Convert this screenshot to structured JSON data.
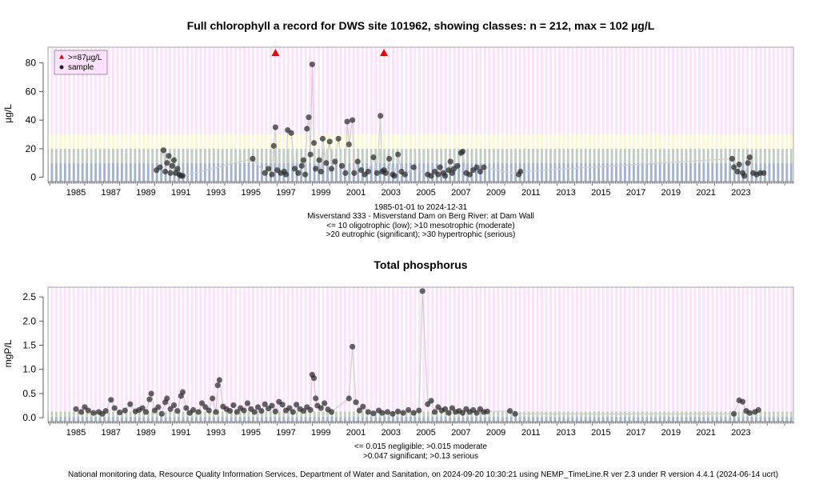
{
  "footer": "National monitoring data, Resource Quality Information Services, Department of Water and Sanitation, on 2024-09-20 10:30:21 using NEMP_TimeLine.R ver 2.3 under R version 4.4.1 (2024-06-14 ucrt)",
  "chart_data": [
    {
      "type": "scatter",
      "title": "Full chlorophyll a record for DWS site 101962, showing classes: n = 212, max = 102 µg/L",
      "ylabel": "µg/L",
      "xlim": [
        1983.9,
        2026.5
      ],
      "ylim": [
        -3,
        91
      ],
      "x_ticks": [
        1985,
        1987,
        1989,
        1991,
        1993,
        1995,
        1997,
        1999,
        2001,
        2003,
        2005,
        2007,
        2009,
        2011,
        2013,
        2015,
        2017,
        2019,
        2021,
        2023
      ],
      "y_ticks": [
        0,
        20,
        40,
        60,
        80
      ],
      "grid": true,
      "legend_position": "top-left",
      "legend": [
        {
          "label": ">=87µg/L",
          "marker": "triangle",
          "color": "#ee0000"
        },
        {
          "label": "sample",
          "marker": "circle",
          "color": "#222222"
        }
      ],
      "bands": [
        {
          "from": -3,
          "to": 10,
          "color": "#a3b2cc"
        },
        {
          "from": 10,
          "to": 20,
          "color": "#c2cdc2"
        },
        {
          "from": 20,
          "to": 30,
          "color": "#fbf7cf"
        },
        {
          "from": 30,
          "to": 91,
          "color": "#fde1fd"
        }
      ],
      "annotation_lines": [
        "1985-01-01 to 2024-12-31",
        "Misverstand 333 - Misverstand Dam on Berg River: at Dam Wall",
        "<= 10 oligotrophic (low); >10 mesotrophic (moderate)",
        ">20 eutrophic (significant); >30 hypertrophic (serious)"
      ],
      "exceedances": [
        [
          1996.9,
          87
        ],
        [
          2003.1,
          87
        ]
      ],
      "series": [
        {
          "points": [
            [
              1990.1,
              5
            ],
            [
              1990.3,
              7
            ],
            [
              1990.5,
              19
            ],
            [
              1990.6,
              4
            ],
            [
              1990.7,
              10
            ],
            [
              1990.8,
              15
            ],
            [
              1990.9,
              3
            ],
            [
              1991.0,
              8
            ],
            [
              1991.1,
              12
            ],
            [
              1991.2,
              3
            ],
            [
              1991.3,
              6
            ],
            [
              1991.4,
              2
            ],
            [
              1991.5,
              1
            ],
            [
              1991.6,
              1
            ],
            [
              1995.6,
              13
            ],
            [
              1996.3,
              3
            ],
            [
              1996.5,
              6
            ],
            [
              1996.7,
              2
            ],
            [
              1996.8,
              22
            ],
            [
              1996.9,
              35
            ],
            [
              1997.0,
              5
            ],
            [
              1997.2,
              3
            ],
            [
              1997.4,
              4
            ],
            [
              1997.5,
              2
            ],
            [
              1997.6,
              33
            ],
            [
              1997.8,
              31
            ],
            [
              1998.0,
              6
            ],
            [
              1998.2,
              3
            ],
            [
              1998.4,
              8
            ],
            [
              1998.5,
              12
            ],
            [
              1998.6,
              2
            ],
            [
              1998.7,
              34
            ],
            [
              1998.8,
              42
            ],
            [
              1998.9,
              16
            ],
            [
              1999.0,
              79
            ],
            [
              1999.1,
              24
            ],
            [
              1999.2,
              6
            ],
            [
              1999.4,
              12
            ],
            [
              1999.5,
              4
            ],
            [
              1999.6,
              27
            ],
            [
              1999.8,
              10
            ],
            [
              2000.0,
              25
            ],
            [
              2000.1,
              6
            ],
            [
              2000.3,
              11
            ],
            [
              2000.5,
              27
            ],
            [
              2000.7,
              8
            ],
            [
              2000.9,
              3
            ],
            [
              2001.0,
              39
            ],
            [
              2001.1,
              23
            ],
            [
              2001.3,
              40
            ],
            [
              2001.4,
              3
            ],
            [
              2001.6,
              11
            ],
            [
              2001.8,
              5
            ],
            [
              2002.0,
              2
            ],
            [
              2002.2,
              4
            ],
            [
              2002.5,
              14
            ],
            [
              2002.7,
              3
            ],
            [
              2002.9,
              43
            ],
            [
              2003.0,
              4
            ],
            [
              2003.1,
              5
            ],
            [
              2003.2,
              3
            ],
            [
              2003.4,
              13
            ],
            [
              2003.6,
              2
            ],
            [
              2003.7,
              1
            ],
            [
              2003.9,
              16
            ],
            [
              2004.1,
              4
            ],
            [
              2004.3,
              2
            ],
            [
              2004.8,
              7
            ],
            [
              2005.6,
              2
            ],
            [
              2005.8,
              1
            ],
            [
              2006.0,
              4
            ],
            [
              2006.2,
              2
            ],
            [
              2006.3,
              7
            ],
            [
              2006.5,
              3
            ],
            [
              2006.6,
              1
            ],
            [
              2006.8,
              5
            ],
            [
              2006.9,
              11
            ],
            [
              2007.0,
              3
            ],
            [
              2007.1,
              6
            ],
            [
              2007.3,
              8
            ],
            [
              2007.5,
              17
            ],
            [
              2007.6,
              18
            ],
            [
              2007.8,
              3
            ],
            [
              2008.0,
              2
            ],
            [
              2008.2,
              5
            ],
            [
              2008.4,
              7
            ],
            [
              2008.6,
              4
            ],
            [
              2008.8,
              7
            ],
            [
              2010.8,
              2
            ],
            [
              2010.9,
              4
            ],
            [
              2023.0,
              13
            ],
            [
              2023.1,
              7
            ],
            [
              2023.3,
              4
            ],
            [
              2023.4,
              9
            ],
            [
              2023.6,
              3
            ],
            [
              2023.7,
              1
            ],
            [
              2023.9,
              10
            ],
            [
              2024.0,
              14
            ],
            [
              2024.2,
              3
            ],
            [
              2024.4,
              2
            ],
            [
              2024.6,
              3
            ],
            [
              2024.8,
              3
            ]
          ]
        }
      ]
    },
    {
      "type": "scatter",
      "title": "Total phosphorus",
      "ylabel": "mgP/L",
      "xlim": [
        1983.9,
        2026.5
      ],
      "ylim": [
        -0.08,
        2.7
      ],
      "x_ticks": [
        1985,
        1987,
        1989,
        1991,
        1993,
        1995,
        1997,
        1999,
        2001,
        2003,
        2005,
        2007,
        2009,
        2011,
        2013,
        2015,
        2017,
        2019,
        2021,
        2023
      ],
      "y_ticks": [
        0.0,
        0.5,
        1.0,
        1.5,
        2.0,
        2.5
      ],
      "grid": true,
      "bands": [
        {
          "from": -0.08,
          "to": 0.015,
          "color": "#a3b2cc"
        },
        {
          "from": 0.015,
          "to": 0.047,
          "color": "#c2cdc2"
        },
        {
          "from": 0.047,
          "to": 0.13,
          "color": "#c2cdc2"
        },
        {
          "from": 0.13,
          "to": 2.7,
          "color": "#fde1fd"
        }
      ],
      "annotation_lines": [
        "<= 0.015 negligible; >0.015 moderate",
        ">0.047 significant; >0.13 serious"
      ],
      "series": [
        {
          "points": [
            [
              1985.5,
              0.18
            ],
            [
              1985.8,
              0.12
            ],
            [
              1986.0,
              0.22
            ],
            [
              1986.2,
              0.15
            ],
            [
              1986.5,
              0.1
            ],
            [
              1986.8,
              0.12
            ],
            [
              1987.0,
              0.08
            ],
            [
              1987.2,
              0.14
            ],
            [
              1987.5,
              0.37
            ],
            [
              1987.7,
              0.2
            ],
            [
              1988.0,
              0.11
            ],
            [
              1988.3,
              0.15
            ],
            [
              1988.6,
              0.28
            ],
            [
              1988.9,
              0.13
            ],
            [
              1989.1,
              0.16
            ],
            [
              1989.3,
              0.2
            ],
            [
              1989.5,
              0.12
            ],
            [
              1989.7,
              0.38
            ],
            [
              1989.8,
              0.5
            ],
            [
              1990.0,
              0.15
            ],
            [
              1990.2,
              0.22
            ],
            [
              1990.4,
              0.08
            ],
            [
              1990.6,
              0.32
            ],
            [
              1990.7,
              0.4
            ],
            [
              1990.9,
              0.18
            ],
            [
              1991.1,
              0.26
            ],
            [
              1991.3,
              0.14
            ],
            [
              1991.5,
              0.45
            ],
            [
              1991.6,
              0.53
            ],
            [
              1991.8,
              0.2
            ],
            [
              1992.0,
              0.1
            ],
            [
              1992.2,
              0.16
            ],
            [
              1992.5,
              0.12
            ],
            [
              1992.7,
              0.3
            ],
            [
              1992.9,
              0.22
            ],
            [
              1993.1,
              0.15
            ],
            [
              1993.3,
              0.4
            ],
            [
              1993.5,
              0.12
            ],
            [
              1993.6,
              0.67
            ],
            [
              1993.7,
              0.78
            ],
            [
              1993.9,
              0.23
            ],
            [
              1994.1,
              0.18
            ],
            [
              1994.3,
              0.14
            ],
            [
              1994.5,
              0.26
            ],
            [
              1994.7,
              0.12
            ],
            [
              1994.9,
              0.2
            ],
            [
              1995.1,
              0.15
            ],
            [
              1995.3,
              0.3
            ],
            [
              1995.5,
              0.18
            ],
            [
              1995.7,
              0.12
            ],
            [
              1995.9,
              0.22
            ],
            [
              1996.1,
              0.14
            ],
            [
              1996.3,
              0.28
            ],
            [
              1996.5,
              0.19
            ],
            [
              1996.7,
              0.25
            ],
            [
              1996.9,
              0.13
            ],
            [
              1997.1,
              0.33
            ],
            [
              1997.3,
              0.27
            ],
            [
              1997.5,
              0.15
            ],
            [
              1997.7,
              0.2
            ],
            [
              1997.9,
              0.12
            ],
            [
              1998.1,
              0.27
            ],
            [
              1998.3,
              0.18
            ],
            [
              1998.5,
              0.14
            ],
            [
              1998.7,
              0.22
            ],
            [
              1998.9,
              0.16
            ],
            [
              1999.0,
              0.89
            ],
            [
              1999.1,
              0.82
            ],
            [
              1999.2,
              0.4
            ],
            [
              1999.3,
              0.25
            ],
            [
              1999.5,
              0.2
            ],
            [
              1999.7,
              0.3
            ],
            [
              1999.9,
              0.17
            ],
            [
              2000.1,
              0.12
            ],
            [
              2001.1,
              0.4
            ],
            [
              2001.3,
              1.47
            ],
            [
              2001.5,
              0.32
            ],
            [
              2001.7,
              0.15
            ],
            [
              2001.9,
              0.23
            ],
            [
              2002.2,
              0.12
            ],
            [
              2002.5,
              0.09
            ],
            [
              2002.8,
              0.15
            ],
            [
              2003.0,
              0.1
            ],
            [
              2003.3,
              0.12
            ],
            [
              2003.6,
              0.08
            ],
            [
              2003.9,
              0.13
            ],
            [
              2004.2,
              0.1
            ],
            [
              2004.5,
              0.16
            ],
            [
              2004.8,
              0.1
            ],
            [
              2005.1,
              0.15
            ],
            [
              2005.3,
              2.62
            ],
            [
              2005.6,
              0.28
            ],
            [
              2005.8,
              0.35
            ],
            [
              2006.0,
              0.12
            ],
            [
              2006.2,
              0.22
            ],
            [
              2006.4,
              0.15
            ],
            [
              2006.6,
              0.18
            ],
            [
              2006.8,
              0.1
            ],
            [
              2007.0,
              0.2
            ],
            [
              2007.2,
              0.12
            ],
            [
              2007.4,
              0.14
            ],
            [
              2007.6,
              0.1
            ],
            [
              2007.8,
              0.18
            ],
            [
              2008.0,
              0.12
            ],
            [
              2008.2,
              0.16
            ],
            [
              2008.4,
              0.1
            ],
            [
              2008.6,
              0.18
            ],
            [
              2008.8,
              0.12
            ],
            [
              2009.0,
              0.13
            ],
            [
              2010.3,
              0.14
            ],
            [
              2010.6,
              0.08
            ],
            [
              2023.1,
              0.08
            ],
            [
              2023.4,
              0.36
            ],
            [
              2023.6,
              0.33
            ],
            [
              2023.8,
              0.14
            ],
            [
              2024.0,
              0.1
            ],
            [
              2024.3,
              0.12
            ],
            [
              2024.5,
              0.16
            ]
          ]
        }
      ]
    }
  ]
}
